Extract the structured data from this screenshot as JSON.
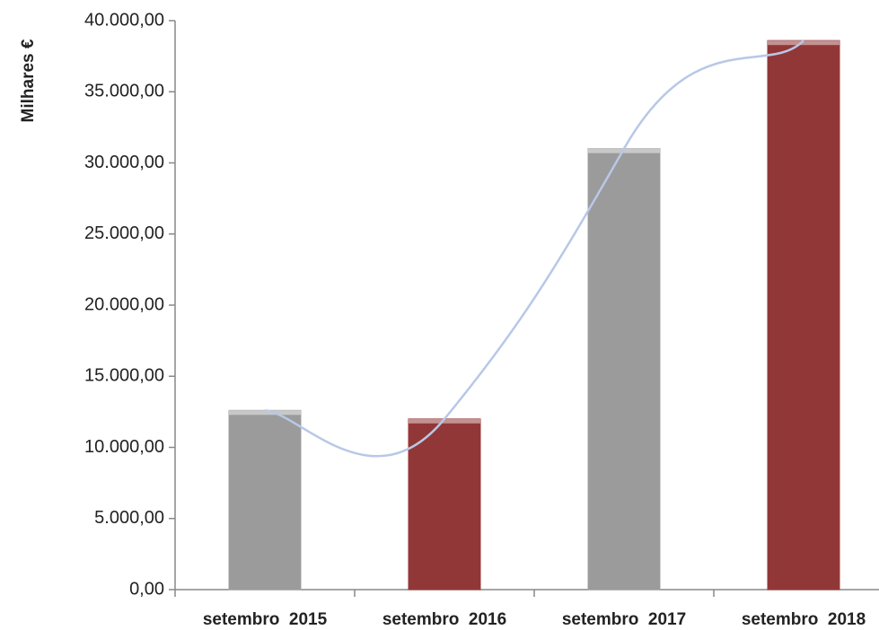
{
  "chart_data": {
    "type": "bar",
    "y_label": "Milhares €",
    "categories": [
      "setembro  2015",
      "setembro  2016",
      "setembro  2017",
      "setembro  2018"
    ],
    "values": [
      12600,
      12000,
      31000,
      38600
    ],
    "colors": [
      "#a6a6a6",
      "#9c3a3a",
      "#a6a6a6",
      "#9c3a3a"
    ],
    "trend_line_color": "#b8c8e6",
    "ylim": [
      0,
      40000
    ],
    "yticks": [
      {
        "value": 0,
        "label": "0,00"
      },
      {
        "value": 5000,
        "label": "5.000,00"
      },
      {
        "value": 10000,
        "label": "10.000,00"
      },
      {
        "value": 15000,
        "label": "15.000,00"
      },
      {
        "value": 20000,
        "label": "20.000,00"
      },
      {
        "value": 25000,
        "label": "25.000,00"
      },
      {
        "value": 30000,
        "label": "30.000,00"
      },
      {
        "value": 35000,
        "label": "35.000,00"
      },
      {
        "value": 40000,
        "label": "40.000,00"
      }
    ]
  }
}
